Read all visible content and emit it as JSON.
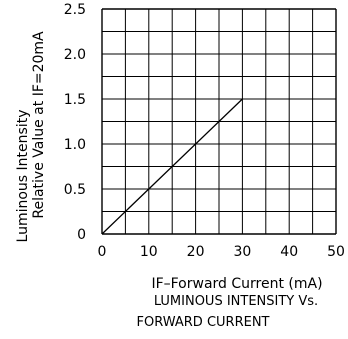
{
  "chart_data": {
    "type": "line",
    "title": "",
    "xlabel": "IF–Forward Current (mA)",
    "ylabel_line1": "Luminous Intensity",
    "ylabel_line2": "Relative Value at IF=20mA",
    "caption_line1": "LUMINOUS INTENSITY Vs.",
    "caption_line2": "FORWARD CURRENT",
    "xlim": [
      0,
      50
    ],
    "ylim": [
      0,
      2.5
    ],
    "grid": true,
    "x_ticks": [
      0,
      10,
      20,
      30,
      40,
      50
    ],
    "y_ticks": [
      0,
      0.5,
      1.0,
      1.5,
      2.0,
      2.5
    ],
    "x_tick_labels": [
      "0",
      "10",
      "20",
      "30",
      "40",
      "50"
    ],
    "y_tick_labels": [
      "0",
      "0.5",
      "1.0",
      "1.5",
      "2.0",
      "2.5"
    ],
    "series": [
      {
        "x": [
          0,
          30
        ],
        "y": [
          0,
          1.5
        ]
      }
    ],
    "line_color": "#000000",
    "grid_color": "#000000"
  }
}
